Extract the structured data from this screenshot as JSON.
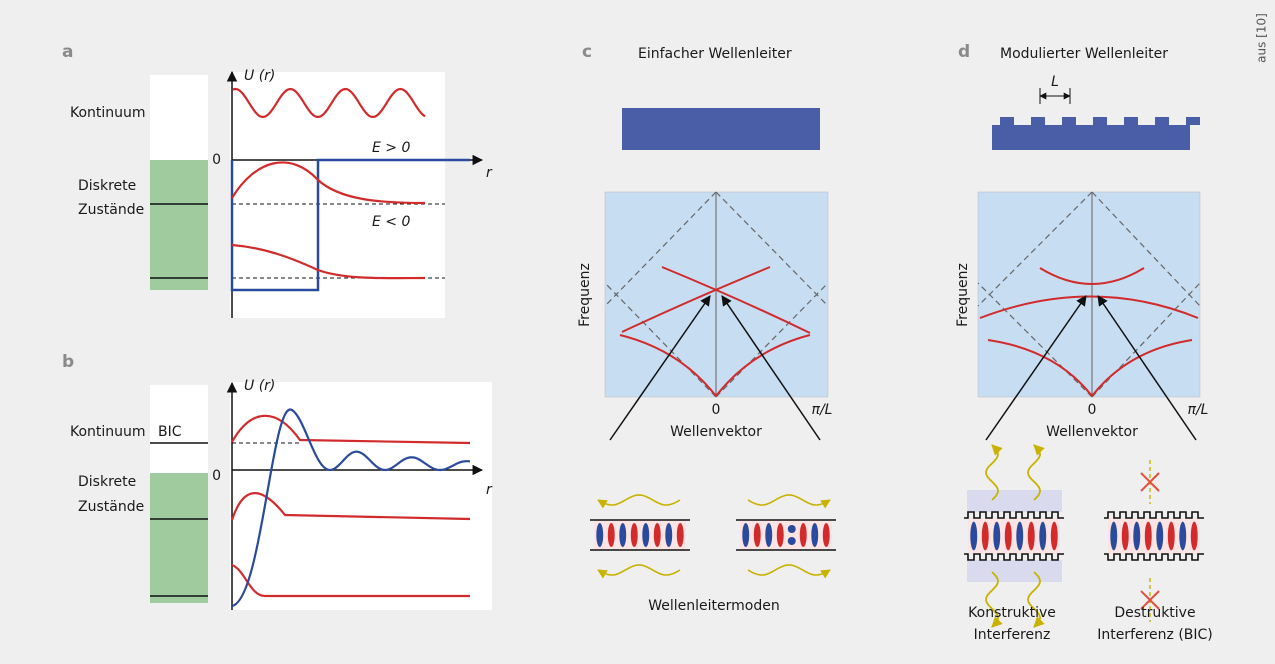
{
  "credit": "aus [10]",
  "panel_a": {
    "label": "a",
    "axis_label": "U (r)",
    "r_label": "r",
    "zero": "0",
    "continuum": "Kontinuum",
    "discrete": [
      "Diskrete",
      "Zustände"
    ],
    "energy_pos": "E > 0",
    "energy_neg": "E < 0"
  },
  "panel_b": {
    "label": "b",
    "axis_label": "U (r)",
    "r_label": "r",
    "zero": "0",
    "continuum": "Kontinuum",
    "bic": "BIC",
    "discrete": [
      "Diskrete",
      "Zustände"
    ]
  },
  "panel_c": {
    "label": "c",
    "title": "Einfacher Wellenleiter",
    "y_label": "Frequenz",
    "x_zero": "0",
    "x_end": "π/L",
    "x_label": "Wellenvektor",
    "caption": "Wellenleitermoden"
  },
  "panel_d": {
    "label": "d",
    "title": "Modulierter Wellenleiter",
    "period": "L",
    "y_label": "Frequenz",
    "x_zero": "0",
    "x_end": "π/L",
    "x_label": "Wellenvektor",
    "constructive": [
      "Konstruktive",
      "Interferenz"
    ],
    "destructive": [
      "Destruktive",
      "Interferenz (BIC)"
    ]
  }
}
